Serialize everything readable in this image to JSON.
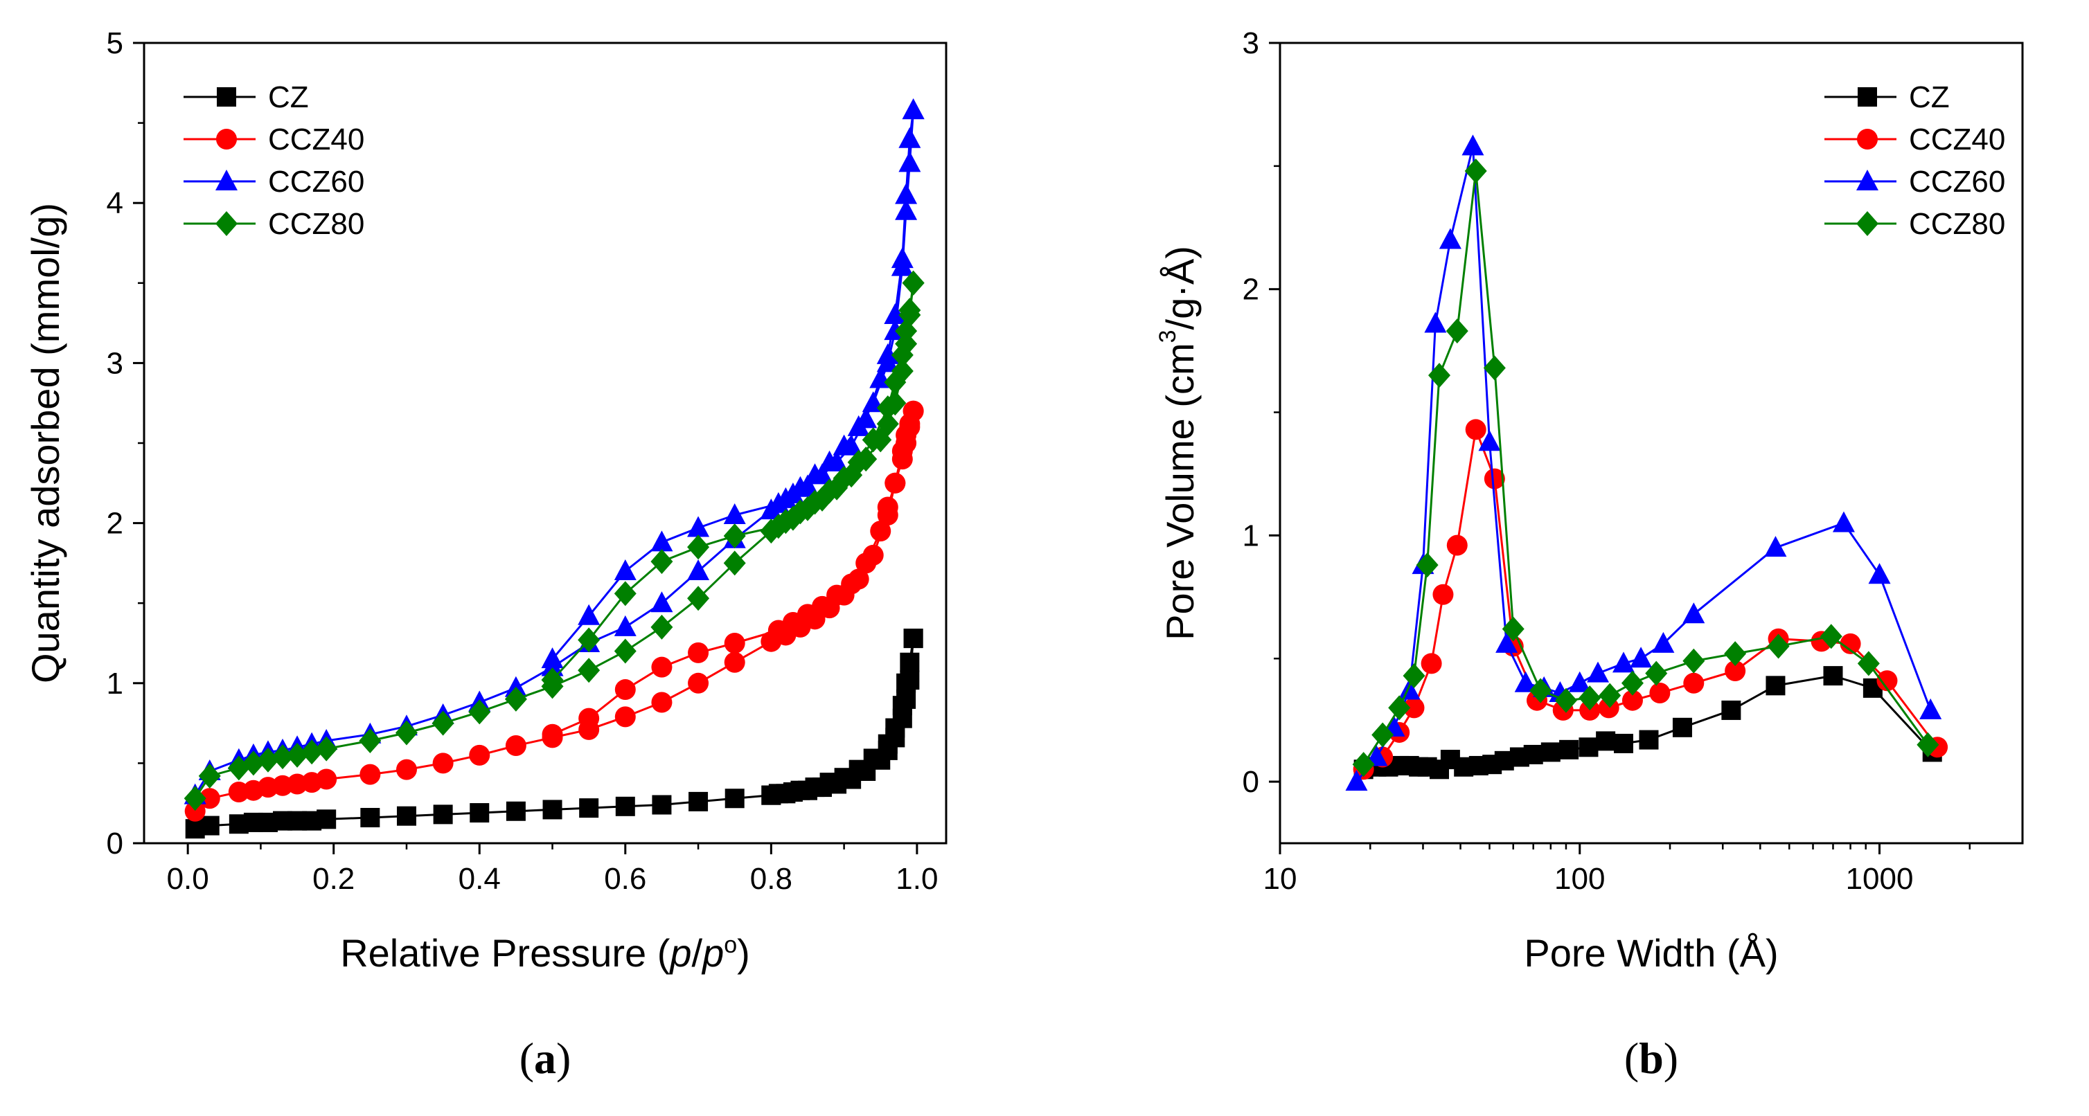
{
  "chart_data": [
    {
      "type": "line",
      "panel_label": "(a)",
      "panel_letter": "a",
      "title": "",
      "xlabel_prefix": "Relative Pressure (",
      "xlabel_p": "p",
      "xlabel_slash": "/",
      "xlabel_p0": "p",
      "xlabel_sup": "o",
      "xlabel_suffix": ")",
      "ylabel": "Quantity adsorbed (mmol/g)",
      "xlim": [
        -0.06,
        1.04
      ],
      "ylim": [
        0,
        5
      ],
      "xscale": "linear",
      "xticks": [
        0.0,
        0.2,
        0.4,
        0.6,
        0.8,
        1.0
      ],
      "xtick_labels": [
        "0.0",
        "0.2",
        "0.4",
        "0.6",
        "0.8",
        "1.0"
      ],
      "yticks": [
        0,
        1,
        2,
        3,
        4,
        5
      ],
      "ytick_labels": [
        "0",
        "1",
        "2",
        "3",
        "4",
        "5"
      ],
      "legend_position": "top-left",
      "grid": false,
      "series": [
        {
          "name": "CZ",
          "color": "#000000",
          "marker": "square",
          "adsorption": {
            "x": [
              0.01,
              0.03,
              0.07,
              0.09,
              0.11,
              0.13,
              0.15,
              0.17,
              0.19,
              0.25,
              0.3,
              0.35,
              0.4,
              0.45,
              0.5,
              0.55,
              0.6,
              0.65,
              0.7,
              0.75,
              0.8,
              0.82,
              0.84,
              0.86,
              0.88,
              0.9,
              0.92,
              0.94,
              0.96,
              0.97,
              0.98,
              0.985,
              0.99,
              0.995
            ],
            "y": [
              0.09,
              0.11,
              0.12,
              0.13,
              0.13,
              0.14,
              0.14,
              0.14,
              0.15,
              0.16,
              0.17,
              0.18,
              0.19,
              0.2,
              0.21,
              0.22,
              0.23,
              0.24,
              0.26,
              0.28,
              0.3,
              0.31,
              0.33,
              0.35,
              0.38,
              0.41,
              0.46,
              0.53,
              0.62,
              0.72,
              0.86,
              1.0,
              1.13,
              1.28
            ]
          },
          "desorption": {
            "x": [
              0.995,
              0.99,
              0.985,
              0.98,
              0.97,
              0.96,
              0.95,
              0.93,
              0.91,
              0.89,
              0.87,
              0.85,
              0.83,
              0.81,
              0.8
            ],
            "y": [
              1.28,
              1.02,
              0.9,
              0.78,
              0.66,
              0.58,
              0.52,
              0.45,
              0.4,
              0.37,
              0.35,
              0.33,
              0.32,
              0.31,
              0.3
            ]
          }
        },
        {
          "name": "CCZ40",
          "color": "#ff0000",
          "marker": "circle",
          "adsorption": {
            "x": [
              0.01,
              0.03,
              0.07,
              0.09,
              0.11,
              0.13,
              0.15,
              0.17,
              0.19,
              0.25,
              0.3,
              0.35,
              0.4,
              0.45,
              0.5,
              0.55,
              0.6,
              0.65,
              0.7,
              0.75,
              0.8,
              0.82,
              0.84,
              0.86,
              0.88,
              0.9,
              0.92,
              0.94,
              0.96,
              0.97,
              0.98,
              0.985,
              0.99,
              0.995
            ],
            "y": [
              0.2,
              0.28,
              0.32,
              0.33,
              0.35,
              0.36,
              0.37,
              0.38,
              0.4,
              0.43,
              0.46,
              0.5,
              0.55,
              0.61,
              0.66,
              0.71,
              0.79,
              0.88,
              1.0,
              1.13,
              1.26,
              1.3,
              1.35,
              1.4,
              1.47,
              1.55,
              1.65,
              1.8,
              2.05,
              2.25,
              2.45,
              2.55,
              2.62,
              2.7
            ]
          },
          "desorption": {
            "x": [
              0.995,
              0.99,
              0.985,
              0.98,
              0.97,
              0.96,
              0.95,
              0.93,
              0.91,
              0.89,
              0.87,
              0.85,
              0.83,
              0.81,
              0.75,
              0.7,
              0.65,
              0.6,
              0.55,
              0.5
            ],
            "y": [
              2.7,
              2.6,
              2.5,
              2.4,
              2.25,
              2.1,
              1.95,
              1.75,
              1.62,
              1.55,
              1.48,
              1.43,
              1.38,
              1.33,
              1.25,
              1.19,
              1.1,
              0.96,
              0.78,
              0.68
            ]
          }
        },
        {
          "name": "CCZ60",
          "color": "#0000ff",
          "marker": "triangle",
          "adsorption": {
            "x": [
              0.01,
              0.03,
              0.07,
              0.09,
              0.11,
              0.13,
              0.15,
              0.17,
              0.19,
              0.25,
              0.3,
              0.35,
              0.4,
              0.45,
              0.5,
              0.55,
              0.6,
              0.65,
              0.7,
              0.75,
              0.8,
              0.82,
              0.84,
              0.86,
              0.88,
              0.9,
              0.92,
              0.94,
              0.96,
              0.97,
              0.98,
              0.985,
              0.99,
              0.995
            ],
            "y": [
              0.3,
              0.45,
              0.52,
              0.55,
              0.57,
              0.58,
              0.6,
              0.62,
              0.64,
              0.68,
              0.73,
              0.8,
              0.88,
              0.97,
              1.1,
              1.25,
              1.35,
              1.5,
              1.7,
              1.9,
              2.08,
              2.15,
              2.22,
              2.3,
              2.38,
              2.48,
              2.6,
              2.75,
              3.0,
              3.2,
              3.6,
              3.95,
              4.25,
              4.58
            ]
          },
          "desorption": {
            "x": [
              0.995,
              0.99,
              0.985,
              0.98,
              0.97,
              0.96,
              0.95,
              0.93,
              0.91,
              0.89,
              0.87,
              0.85,
              0.83,
              0.81,
              0.75,
              0.7,
              0.65,
              0.6,
              0.55,
              0.5
            ],
            "y": [
              4.58,
              4.4,
              4.05,
              3.65,
              3.3,
              3.05,
              2.9,
              2.65,
              2.48,
              2.38,
              2.3,
              2.23,
              2.18,
              2.12,
              2.05,
              1.97,
              1.88,
              1.7,
              1.42,
              1.15
            ]
          }
        },
        {
          "name": "CCZ80",
          "color": "#008000",
          "marker": "diamond",
          "adsorption": {
            "x": [
              0.01,
              0.03,
              0.07,
              0.09,
              0.11,
              0.13,
              0.15,
              0.17,
              0.19,
              0.25,
              0.3,
              0.35,
              0.4,
              0.45,
              0.5,
              0.55,
              0.6,
              0.65,
              0.7,
              0.75,
              0.8,
              0.82,
              0.84,
              0.86,
              0.88,
              0.9,
              0.92,
              0.94,
              0.96,
              0.97,
              0.98,
              0.985,
              0.99,
              0.995
            ],
            "y": [
              0.28,
              0.42,
              0.47,
              0.5,
              0.52,
              0.54,
              0.55,
              0.57,
              0.59,
              0.64,
              0.69,
              0.75,
              0.82,
              0.9,
              0.98,
              1.08,
              1.2,
              1.35,
              1.53,
              1.75,
              1.95,
              2.01,
              2.07,
              2.13,
              2.2,
              2.28,
              2.38,
              2.52,
              2.72,
              2.88,
              3.05,
              3.2,
              3.33,
              3.5
            ]
          },
          "desorption": {
            "x": [
              0.995,
              0.99,
              0.985,
              0.98,
              0.97,
              0.96,
              0.95,
              0.93,
              0.91,
              0.89,
              0.87,
              0.85,
              0.83,
              0.81,
              0.75,
              0.7,
              0.65,
              0.6,
              0.55,
              0.5
            ],
            "y": [
              3.5,
              3.3,
              3.12,
              2.95,
              2.75,
              2.62,
              2.52,
              2.4,
              2.3,
              2.22,
              2.15,
              2.09,
              2.03,
              1.98,
              1.92,
              1.85,
              1.76,
              1.56,
              1.27,
              1.02
            ]
          }
        }
      ]
    },
    {
      "type": "line",
      "panel_label": "(b)",
      "panel_letter": "b",
      "title": "",
      "xlabel": "Pore Width (Å)",
      "ylabel_prefix": "Pore Volume (cm",
      "ylabel_sup": "3",
      "ylabel_suffix": "/g·Å)",
      "xlim": [
        10,
        3000
      ],
      "ylim": [
        -0.25,
        3
      ],
      "xscale": "log",
      "xticks": [
        10,
        100,
        1000
      ],
      "xtick_labels": [
        "10",
        "100",
        "1000"
      ],
      "yticks": [
        0,
        1,
        2,
        3
      ],
      "ytick_labels": [
        "0",
        "1",
        "2",
        "3"
      ],
      "legend_position": "top-right",
      "grid": false,
      "series": [
        {
          "name": "CZ",
          "color": "#000000",
          "marker": "square",
          "x": [
            19,
            21,
            23,
            25,
            27,
            29,
            31,
            34,
            37,
            41,
            46,
            51,
            56,
            63,
            70,
            80,
            92,
            107,
            122,
            140,
            170,
            220,
            320,
            450,
            700,
            950,
            1500
          ],
          "y": [
            0.05,
            0.06,
            0.06,
            0.065,
            0.065,
            0.06,
            0.06,
            0.05,
            0.09,
            0.06,
            0.065,
            0.07,
            0.085,
            0.1,
            0.11,
            0.12,
            0.13,
            0.14,
            0.165,
            0.155,
            0.17,
            0.22,
            0.29,
            0.39,
            0.43,
            0.38,
            0.12
          ]
        },
        {
          "name": "CCZ40",
          "color": "#ff0000",
          "marker": "circle",
          "x": [
            19,
            22,
            25,
            28,
            32,
            35,
            39,
            45,
            52,
            60,
            72,
            88,
            108,
            125,
            150,
            185,
            240,
            330,
            460,
            640,
            800,
            1060,
            1560
          ],
          "y": [
            0.05,
            0.1,
            0.2,
            0.3,
            0.48,
            0.76,
            0.96,
            1.43,
            1.23,
            0.55,
            0.33,
            0.29,
            0.29,
            0.3,
            0.33,
            0.36,
            0.4,
            0.45,
            0.58,
            0.57,
            0.56,
            0.41,
            0.14
          ]
        },
        {
          "name": "CCZ60",
          "color": "#0000ff",
          "marker": "triangle",
          "x": [
            18,
            21,
            24,
            27,
            30,
            33,
            37,
            44,
            50,
            57,
            66,
            76,
            86,
            100,
            115,
            140,
            160,
            190,
            240,
            450,
            760,
            1000,
            1480
          ],
          "y": [
            0.0,
            0.1,
            0.22,
            0.37,
            0.88,
            1.86,
            2.2,
            2.58,
            1.38,
            0.56,
            0.4,
            0.38,
            0.36,
            0.4,
            0.44,
            0.48,
            0.5,
            0.56,
            0.68,
            0.95,
            1.05,
            0.84,
            0.29
          ]
        },
        {
          "name": "CCZ80",
          "color": "#008000",
          "marker": "diamond",
          "x": [
            19,
            22,
            25,
            28,
            31,
            34,
            39,
            45,
            52,
            60,
            74,
            90,
            108,
            126,
            150,
            180,
            240,
            330,
            460,
            690,
            920,
            1450
          ],
          "y": [
            0.07,
            0.19,
            0.3,
            0.43,
            0.88,
            1.65,
            1.83,
            2.48,
            1.68,
            0.62,
            0.37,
            0.33,
            0.34,
            0.35,
            0.4,
            0.44,
            0.49,
            0.52,
            0.55,
            0.59,
            0.48,
            0.15
          ]
        }
      ]
    }
  ]
}
